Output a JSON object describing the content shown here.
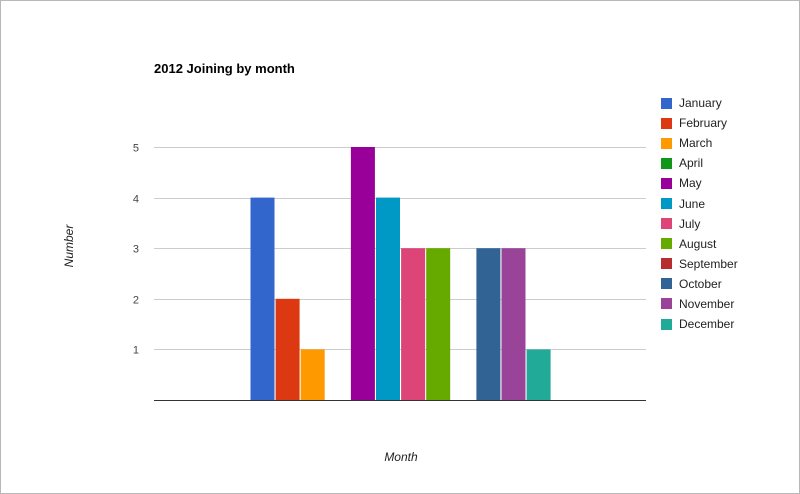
{
  "chart_data": {
    "type": "bar",
    "title": "2012 Joining by month",
    "xlabel": "Month",
    "ylabel": "Number",
    "ylim": [
      0,
      5
    ],
    "yticks": [
      "1",
      "2",
      "3",
      "4",
      "5"
    ],
    "grid": true,
    "legend_position": "right",
    "series": [
      {
        "name": "January",
        "color": "#3366cc",
        "value": 4
      },
      {
        "name": "February",
        "color": "#dc3912",
        "value": 2
      },
      {
        "name": "March",
        "color": "#ff9900",
        "value": 1
      },
      {
        "name": "April",
        "color": "#109618",
        "value": 0
      },
      {
        "name": "May",
        "color": "#990099",
        "value": 5
      },
      {
        "name": "June",
        "color": "#0099c6",
        "value": 4
      },
      {
        "name": "July",
        "color": "#dd4477",
        "value": 3
      },
      {
        "name": "August",
        "color": "#66aa00",
        "value": 3
      },
      {
        "name": "September",
        "color": "#b82e2e",
        "value": 0
      },
      {
        "name": "October",
        "color": "#316395",
        "value": 3
      },
      {
        "name": "November",
        "color": "#994499",
        "value": 3
      },
      {
        "name": "December",
        "color": "#22aa99",
        "value": 1
      }
    ]
  }
}
